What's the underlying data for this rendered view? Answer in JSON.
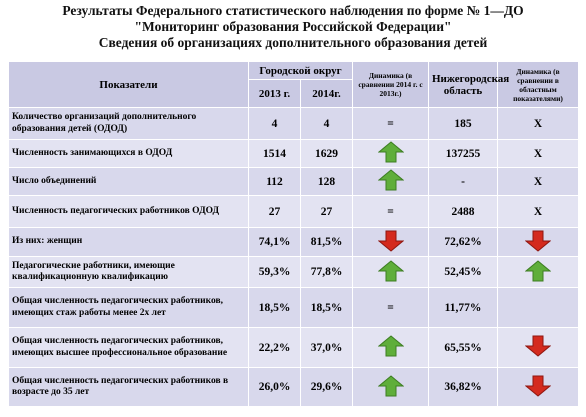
{
  "title": [
    "Результаты Федерального статистического наблюдения по форме № 1—ДО",
    "\"Мониторинг образования Российской Федерации\"",
    "Сведения об организациях дополнительного образования детей"
  ],
  "table": {
    "header": {
      "indicator": "Показатели",
      "city": "Городской округ",
      "y2013": "2013 г.",
      "y2014": "2014г.",
      "dyn1": "Динамика (в сравнении 2014 г. с 2013г.)",
      "region": "Нижегородская область",
      "dyn2": "Динамика (в сравнении в областным показателями)"
    },
    "rows": [
      [
        "Количество организаций дополнительного образования детей (ОДОД)",
        "4",
        "4",
        "=",
        "185",
        "Х"
      ],
      [
        "Численность занимающихся в ОДОД",
        "1514",
        "1629",
        {
          "arrow": "up"
        },
        "137255",
        "Х"
      ],
      [
        "Число объединений",
        "112",
        "128",
        {
          "arrow": "up"
        },
        "-",
        "Х"
      ],
      [
        "Численность педагогических работников ОДОД",
        "27",
        "27",
        "=",
        "2488",
        "Х"
      ],
      [
        "Из них: женщин",
        "74,1%",
        "81,5%",
        {
          "arrow": "down"
        },
        "72,62%",
        {
          "arrow": "down"
        }
      ],
      [
        "Педагогические работники, имеющие квалификационную квалификацию",
        "59,3%",
        "77,8%",
        {
          "arrow": "up"
        },
        "52,45%",
        {
          "arrow": "up"
        }
      ],
      [
        "Общая численность педагогических работников, имеющих стаж работы менее 2х лет",
        "18,5%",
        "18,5%",
        "=",
        "11,77%",
        null
      ],
      [
        "Общая численность педагогических работников, имеющих высшее профессиональное образование",
        "22,2%",
        "37,0%",
        {
          "arrow": "up"
        },
        "65,55%",
        {
          "arrow": "down"
        }
      ],
      [
        "Общая численность педагогических работников в возрасте до 35 лет",
        "26,0%",
        "29,6%",
        {
          "arrow": "up"
        },
        "36,82%",
        {
          "arrow": "down"
        }
      ]
    ]
  }
}
